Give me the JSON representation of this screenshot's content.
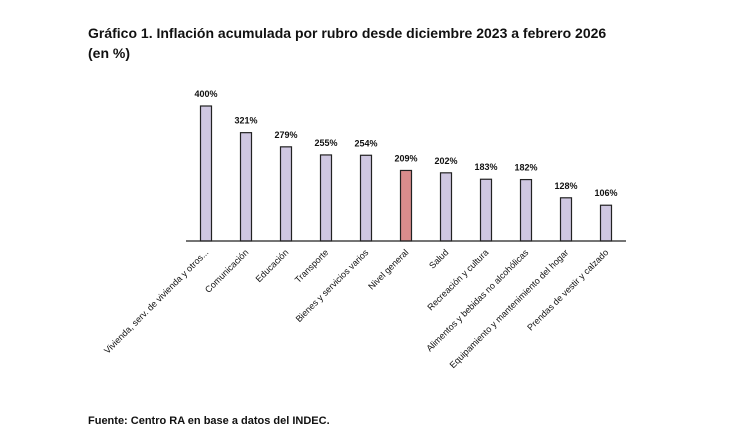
{
  "chart_data": {
    "type": "bar",
    "title": [
      "Gráfico 1. Inflación acumulada por rubro desde diciembre 2023 a febrero 2026",
      "(en %)"
    ],
    "categories": [
      "Vivienda, serv. de vivienda y otros...",
      "Comunicación",
      "Educación",
      "Transporte",
      "Bienes y servicios varios",
      "Nivel general",
      "Salud",
      "Recreación y cultura",
      "Alimentos y bebidas no alcohólicas",
      "Equipamiento y mantenimiento del hogar",
      "Prendas de vestir y calzado"
    ],
    "values": [
      400,
      321,
      279,
      255,
      254,
      209,
      202,
      183,
      182,
      128,
      106
    ],
    "value_labels": [
      "400%",
      "321%",
      "279%",
      "255%",
      "254%",
      "209%",
      "202%",
      "183%",
      "182%",
      "128%",
      "106%"
    ],
    "colors": [
      "#cfc7e1",
      "#cfc7e1",
      "#cfc7e1",
      "#cfc7e1",
      "#cfc7e1",
      "#d98c8c",
      "#cfc7e1",
      "#cfc7e1",
      "#cfc7e1",
      "#cfc7e1",
      "#cfc7e1"
    ],
    "ylim": [
      0,
      400
    ],
    "source": "Fuente: Centro RA en base a datos del INDEC."
  }
}
